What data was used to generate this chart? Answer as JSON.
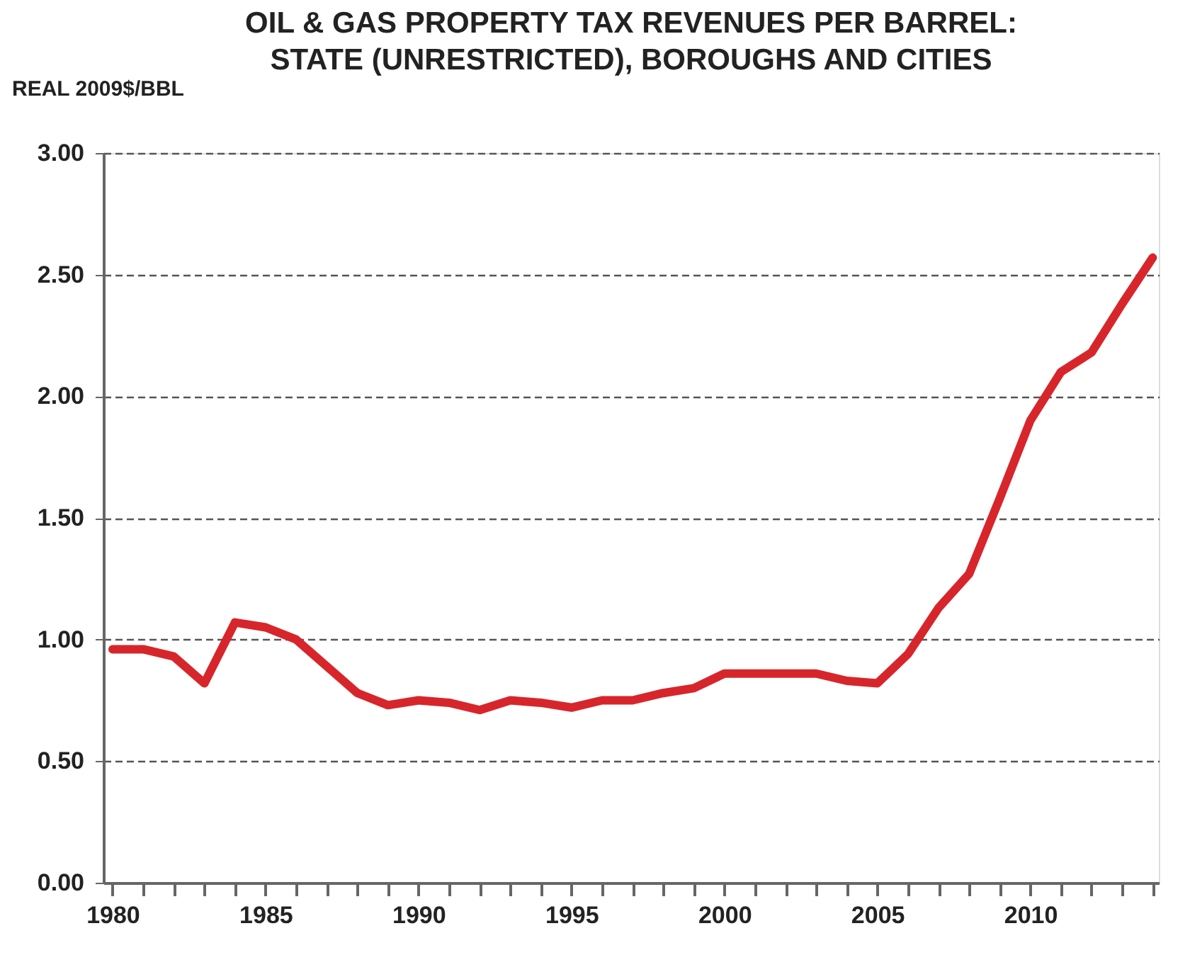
{
  "chart_data": {
    "type": "line",
    "title": "OIL & GAS PROPERTY TAX REVENUES PER BARREL: STATE (UNRESTRICTED), BOROUGHS AND CITIES",
    "ylabel": "REAL 2009$/BBL",
    "x": [
      1980,
      1981,
      1982,
      1983,
      1984,
      1985,
      1986,
      1987,
      1988,
      1989,
      1990,
      1991,
      1992,
      1993,
      1994,
      1995,
      1996,
      1997,
      1998,
      1999,
      2000,
      2001,
      2002,
      2003,
      2004,
      2005,
      2006,
      2007,
      2008,
      2009,
      2010,
      2011,
      2012,
      2013,
      2014
    ],
    "series": [
      {
        "color": "#d7262b",
        "values": [
          0.96,
          0.96,
          0.93,
          0.82,
          1.07,
          1.05,
          1.0,
          0.89,
          0.78,
          0.73,
          0.75,
          0.74,
          0.71,
          0.75,
          0.74,
          0.72,
          0.75,
          0.75,
          0.78,
          0.8,
          0.86,
          0.86,
          0.86,
          0.86,
          0.83,
          0.82,
          0.94,
          1.13,
          1.27,
          1.58,
          1.9,
          2.1,
          2.18,
          2.38,
          2.57
        ]
      }
    ],
    "xlim": [
      1979.7,
      2014.2
    ],
    "xticks": [
      1980,
      {
        "value": 1981,
        "label": null
      },
      {
        "value": 1982,
        "label": null
      },
      {
        "value": 1983,
        "label": null
      },
      {
        "value": 1984,
        "label": null
      },
      1985,
      {
        "value": 1986,
        "label": null
      },
      {
        "value": 1987,
        "label": null
      },
      {
        "value": 1988,
        "label": null
      },
      {
        "value": 1989,
        "label": null
      },
      1990,
      {
        "value": 1991,
        "label": null
      },
      {
        "value": 1992,
        "label": null
      },
      {
        "value": 1993,
        "label": null
      },
      {
        "value": 1994,
        "label": null
      },
      1995,
      {
        "value": 1996,
        "label": null
      },
      {
        "value": 1997,
        "label": null
      },
      {
        "value": 1998,
        "label": null
      },
      {
        "value": 1999,
        "label": null
      },
      2000,
      {
        "value": 2001,
        "label": null
      },
      {
        "value": 2002,
        "label": null
      },
      {
        "value": 2003,
        "label": null
      },
      {
        "value": 2004,
        "label": null
      },
      2005,
      {
        "value": 2006,
        "label": null
      },
      {
        "value": 2007,
        "label": null
      },
      {
        "value": 2008,
        "label": null
      },
      {
        "value": 2009,
        "label": null
      },
      2010,
      {
        "value": 2011,
        "label": null
      },
      {
        "value": 2012,
        "label": null
      },
      {
        "value": 2013,
        "label": null
      },
      {
        "value": 2014,
        "label": null
      }
    ],
    "ylim": [
      0,
      3
    ],
    "yticks": [
      {
        "value": 0,
        "label": "0.00"
      },
      {
        "value": 0.5,
        "label": "0.50"
      },
      {
        "value": 1,
        "label": "1.00"
      },
      {
        "value": 1.5,
        "label": "1.50"
      },
      {
        "value": 2,
        "label": "2.00"
      },
      {
        "value": 2.5,
        "label": "2.50"
      },
      {
        "value": 3,
        "label": "3.00"
      }
    ],
    "grid": "y",
    "line_style": "solid",
    "marker": "none",
    "legend": false
  }
}
